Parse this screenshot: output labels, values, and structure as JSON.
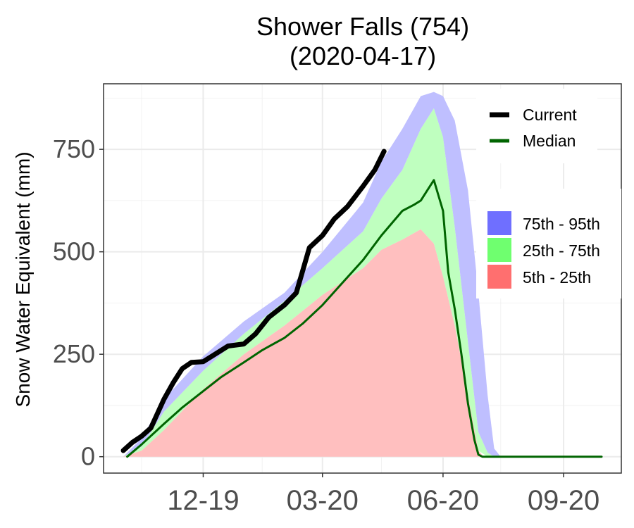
{
  "chart_data": {
    "type": "area",
    "title": "Shower Falls (754)",
    "subtitle": "(2020-04-17)",
    "xlabel": "",
    "ylabel": "Snow Water Equivalent (mm)",
    "ylim": [
      -40,
      910
    ],
    "xlim": [
      "2020-10-11",
      "2020-10-11"
    ],
    "x_axis": {
      "start": "2019-10-01",
      "end": "2020-09-30",
      "ticks": [
        {
          "label": "12-19",
          "date": "2019-12-01"
        },
        {
          "label": "03-20",
          "date": "2020-03-01"
        },
        {
          "label": "06-20",
          "date": "2020-06-01"
        },
        {
          "label": "09-20",
          "date": "2020-09-01"
        }
      ]
    },
    "y_axis": {
      "ticks": [
        0,
        250,
        500,
        750
      ]
    },
    "grid": true,
    "legend": {
      "position": "top-right",
      "lines": [
        {
          "name": "Current",
          "color": "#000000"
        },
        {
          "name": "Median",
          "color": "#006400"
        }
      ],
      "bands": [
        {
          "name": "75th - 95th",
          "color": "#6f6fff"
        },
        {
          "name": "25th - 75th",
          "color": "#6fff6f"
        },
        {
          "name": "5th - 25th",
          "color": "#ff6f6f"
        }
      ]
    },
    "series": [
      {
        "name": "5th - 25th",
        "role": "band",
        "color": "#ffbfbf",
        "x": [
          "2019-10-01",
          "2019-10-15",
          "2019-11-01",
          "2019-12-01",
          "2020-01-01",
          "2020-02-01",
          "2020-03-01",
          "2020-04-01",
          "2020-04-15",
          "2020-05-01",
          "2020-05-15",
          "2020-05-25",
          "2020-06-01",
          "2020-06-10",
          "2020-06-20",
          "2020-06-28",
          "2020-07-02",
          "2020-07-05",
          "2020-09-30"
        ],
        "lower": [
          0,
          0,
          0,
          0,
          0,
          0,
          0,
          0,
          0,
          0,
          0,
          0,
          0,
          0,
          0,
          0,
          0,
          0,
          0
        ],
        "upper": [
          0,
          15,
          65,
          165,
          250,
          320,
          395,
          460,
          505,
          530,
          555,
          520,
          440,
          320,
          150,
          15,
          0,
          0,
          0
        ]
      },
      {
        "name": "25th - 75th",
        "role": "band",
        "color": "#bfffbf",
        "x": [
          "2019-10-01",
          "2019-10-15",
          "2019-11-01",
          "2019-12-01",
          "2020-01-01",
          "2020-02-01",
          "2020-03-01",
          "2020-04-01",
          "2020-04-15",
          "2020-05-01",
          "2020-05-15",
          "2020-05-25",
          "2020-06-01",
          "2020-06-10",
          "2020-06-20",
          "2020-06-28",
          "2020-07-05",
          "2020-07-10",
          "2020-09-30"
        ],
        "lower": [
          0,
          15,
          65,
          165,
          250,
          320,
          395,
          460,
          505,
          530,
          555,
          520,
          440,
          320,
          150,
          15,
          0,
          0,
          0
        ],
        "upper": [
          0,
          25,
          110,
          210,
          300,
          380,
          460,
          550,
          630,
          700,
          800,
          850,
          780,
          560,
          280,
          60,
          10,
          0,
          0
        ]
      },
      {
        "name": "75th - 95th",
        "role": "band",
        "color": "#bfbfff",
        "x": [
          "2019-10-01",
          "2019-10-15",
          "2019-11-01",
          "2019-12-01",
          "2020-01-01",
          "2020-02-01",
          "2020-03-01",
          "2020-04-01",
          "2020-04-15",
          "2020-05-01",
          "2020-05-15",
          "2020-05-25",
          "2020-06-01",
          "2020-06-10",
          "2020-06-20",
          "2020-06-28",
          "2020-07-05",
          "2020-07-10",
          "2020-07-15",
          "2020-09-30"
        ],
        "lower": [
          0,
          25,
          110,
          210,
          300,
          380,
          460,
          550,
          630,
          700,
          800,
          850,
          780,
          560,
          280,
          60,
          10,
          0,
          0,
          0
        ],
        "upper": [
          0,
          45,
          140,
          245,
          330,
          400,
          500,
          620,
          720,
          800,
          880,
          890,
          880,
          820,
          650,
          400,
          150,
          20,
          0,
          0
        ]
      },
      {
        "name": "Median",
        "role": "line",
        "color": "#006400",
        "x": [
          "2019-10-04",
          "2019-10-15",
          "2019-11-01",
          "2019-11-15",
          "2019-12-01",
          "2019-12-15",
          "2020-01-01",
          "2020-01-15",
          "2020-02-01",
          "2020-02-15",
          "2020-03-01",
          "2020-03-15",
          "2020-04-01",
          "2020-04-15",
          "2020-05-01",
          "2020-05-10",
          "2020-05-15",
          "2020-05-20",
          "2020-05-25",
          "2020-06-01",
          "2020-06-05",
          "2020-06-10",
          "2020-06-15",
          "2020-06-20",
          "2020-06-25",
          "2020-06-28",
          "2020-07-01",
          "2020-09-30"
        ],
        "values": [
          0,
          30,
          80,
          120,
          160,
          195,
          230,
          260,
          290,
          325,
          370,
          420,
          480,
          540,
          600,
          615,
          625,
          650,
          675,
          600,
          450,
          360,
          250,
          130,
          40,
          5,
          0,
          0
        ]
      },
      {
        "name": "Current",
        "role": "line",
        "color": "#000000",
        "x": [
          "2019-10-01",
          "2019-10-08",
          "2019-10-15",
          "2019-10-22",
          "2019-11-01",
          "2019-11-08",
          "2019-11-15",
          "2019-11-22",
          "2019-12-01",
          "2019-12-10",
          "2019-12-20",
          "2020-01-01",
          "2020-01-10",
          "2020-01-20",
          "2020-02-01",
          "2020-02-10",
          "2020-02-20",
          "2020-03-01",
          "2020-03-10",
          "2020-03-20",
          "2020-04-01",
          "2020-04-10",
          "2020-04-17"
        ],
        "values": [
          15,
          35,
          50,
          70,
          140,
          180,
          215,
          230,
          232,
          250,
          270,
          275,
          300,
          340,
          370,
          400,
          510,
          540,
          580,
          610,
          660,
          700,
          745
        ]
      }
    ]
  }
}
